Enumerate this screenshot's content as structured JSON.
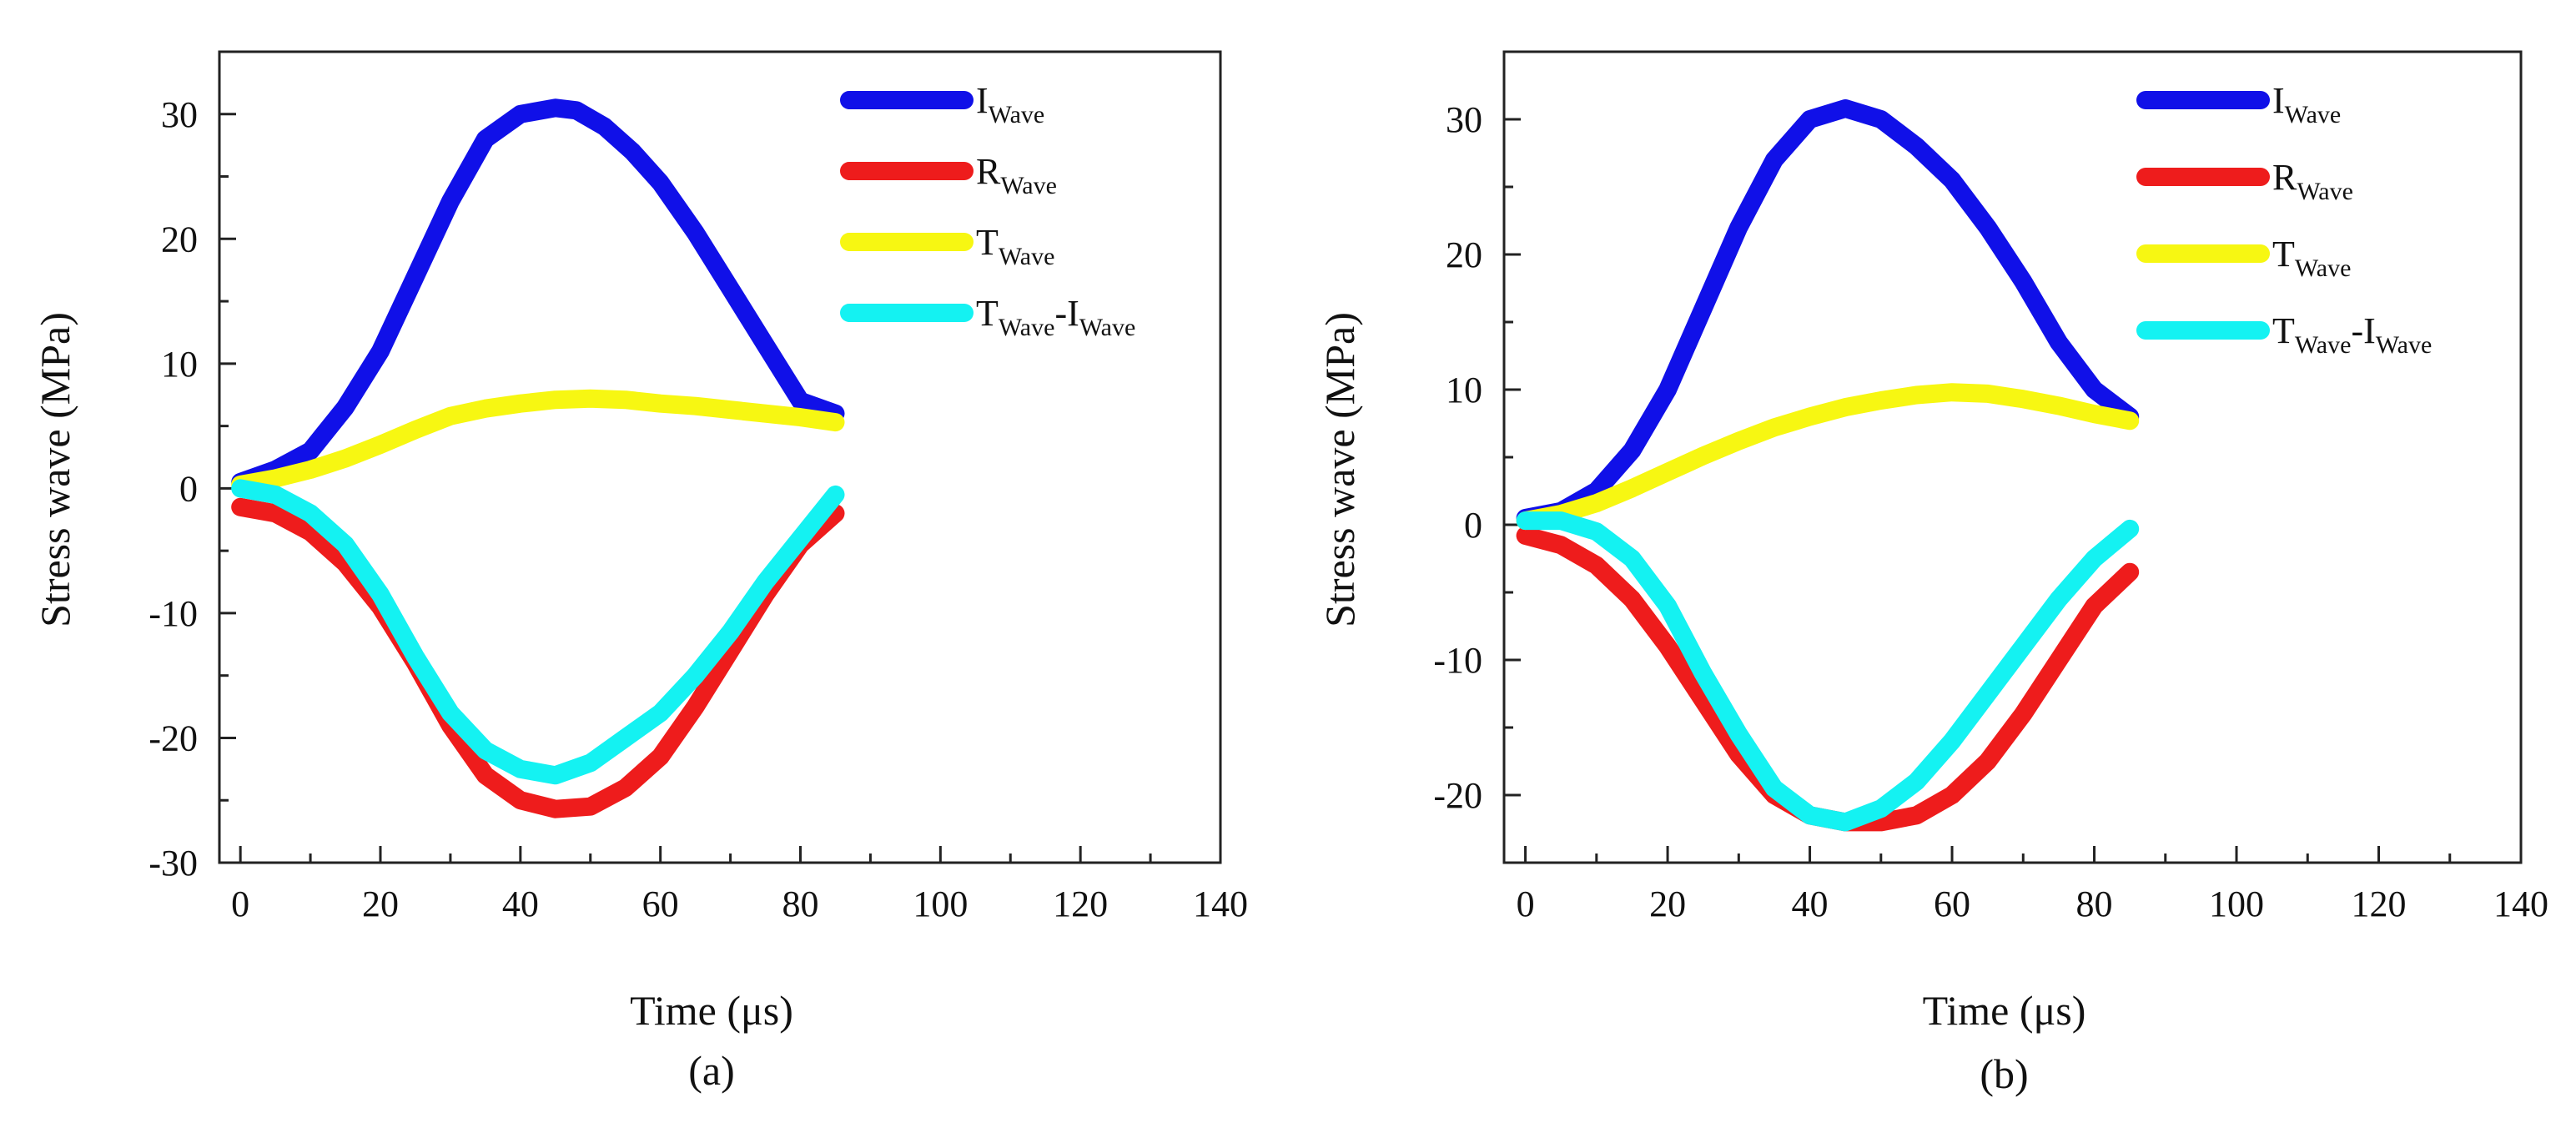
{
  "figure": {
    "caption_labels": [
      "(a)",
      "(b)"
    ]
  },
  "colors": {
    "I": "#1010e8",
    "R": "#ee1c1c",
    "T": "#f7f712",
    "TI": "#14f2f2"
  },
  "chart_data": [
    {
      "type": "line",
      "panel_label": "(a)",
      "xlabel": "Time (μs)",
      "ylabel": "Stress wave (MPa)",
      "xlim": [
        -3,
        140
      ],
      "ylim": [
        -30,
        35
      ],
      "xticks": [
        0,
        20,
        40,
        60,
        80,
        100,
        120,
        140
      ],
      "yticks": [
        -30,
        -20,
        -10,
        0,
        10,
        20,
        30
      ],
      "xtick_labels": [
        "0",
        "20",
        "40",
        "60",
        "80",
        "100",
        "120",
        "140"
      ],
      "ytick_labels": [
        "-30",
        "-20",
        "-10",
        "0",
        "10",
        "20",
        "30"
      ],
      "grid": false,
      "legend_position": "top-right",
      "series": [
        {
          "key": "I",
          "name": "I",
          "name_sub": "Wave",
          "x": [
            0,
            5,
            10,
            15,
            20,
            25,
            30,
            35,
            40,
            45,
            48,
            52,
            56,
            60,
            65,
            70,
            75,
            80,
            85
          ],
          "values": [
            0.5,
            1.5,
            3,
            6.5,
            11,
            17,
            23,
            28,
            30,
            30.5,
            30.3,
            29,
            27,
            24.5,
            20.5,
            16,
            11.5,
            7,
            6
          ]
        },
        {
          "key": "R",
          "name": "R",
          "name_sub": "Wave",
          "x": [
            0,
            5,
            10,
            15,
            20,
            25,
            30,
            35,
            40,
            45,
            50,
            55,
            60,
            65,
            70,
            75,
            80,
            85
          ],
          "values": [
            -1.5,
            -2,
            -3.5,
            -6,
            -9.5,
            -14,
            -19,
            -23,
            -25,
            -25.7,
            -25.5,
            -24,
            -21.5,
            -17.5,
            -13,
            -8.5,
            -4.5,
            -2
          ]
        },
        {
          "key": "T",
          "name": "T",
          "name_sub": "Wave",
          "x": [
            0,
            5,
            10,
            15,
            20,
            25,
            30,
            35,
            40,
            45,
            50,
            55,
            60,
            65,
            70,
            75,
            80,
            85
          ],
          "values": [
            0.3,
            0.8,
            1.5,
            2.4,
            3.5,
            4.7,
            5.8,
            6.4,
            6.8,
            7.1,
            7.2,
            7.1,
            6.8,
            6.6,
            6.3,
            6.0,
            5.7,
            5.3
          ]
        },
        {
          "key": "TI",
          "name": "T",
          "name_sub": "Wave",
          "name2": "-I",
          "name2_sub": "Wave",
          "x": [
            0,
            5,
            10,
            15,
            20,
            25,
            30,
            35,
            40,
            45,
            50,
            55,
            60,
            65,
            70,
            75,
            80,
            85
          ],
          "values": [
            0,
            -0.5,
            -2,
            -4.5,
            -8.5,
            -13.5,
            -18,
            -21,
            -22.5,
            -23,
            -22,
            -20,
            -18,
            -15,
            -11.5,
            -7.5,
            -4,
            -0.5
          ]
        }
      ]
    },
    {
      "type": "line",
      "panel_label": "(b)",
      "xlabel": "Time (μs)",
      "ylabel": "Stress wave (MPa)",
      "xlim": [
        -3,
        140
      ],
      "ylim": [
        -25,
        35
      ],
      "xticks": [
        0,
        20,
        40,
        60,
        80,
        100,
        120,
        140
      ],
      "yticks": [
        -20,
        -10,
        0,
        10,
        20,
        30
      ],
      "xtick_labels": [
        "0",
        "20",
        "40",
        "60",
        "80",
        "100",
        "120",
        "140"
      ],
      "ytick_labels": [
        "-20",
        "-10",
        "0",
        "10",
        "20",
        "30"
      ],
      "grid": false,
      "legend_position": "top-right",
      "series": [
        {
          "key": "I",
          "name": "I",
          "name_sub": "Wave",
          "x": [
            0,
            5,
            10,
            15,
            20,
            25,
            30,
            35,
            40,
            45,
            50,
            55,
            60,
            65,
            70,
            75,
            80,
            85
          ],
          "values": [
            0.5,
            1,
            2.5,
            5.5,
            10,
            16,
            22,
            27,
            30,
            30.8,
            30,
            28,
            25.5,
            22,
            18,
            13.5,
            10,
            8
          ]
        },
        {
          "key": "R",
          "name": "R",
          "name_sub": "Wave",
          "x": [
            0,
            5,
            10,
            15,
            20,
            25,
            30,
            35,
            40,
            45,
            50,
            55,
            60,
            65,
            70,
            75,
            80,
            85
          ],
          "values": [
            -0.8,
            -1.5,
            -3,
            -5.5,
            -9,
            -13,
            -17,
            -20,
            -21.5,
            -22,
            -22,
            -21.5,
            -20,
            -17.5,
            -14,
            -10,
            -6,
            -3.5
          ]
        },
        {
          "key": "T",
          "name": "T",
          "name_sub": "Wave",
          "x": [
            0,
            5,
            10,
            15,
            20,
            25,
            30,
            35,
            40,
            45,
            50,
            55,
            60,
            65,
            70,
            75,
            80,
            85
          ],
          "values": [
            0.3,
            0.8,
            1.6,
            2.7,
            3.9,
            5.1,
            6.2,
            7.2,
            8.0,
            8.7,
            9.2,
            9.6,
            9.8,
            9.7,
            9.3,
            8.8,
            8.2,
            7.7
          ]
        },
        {
          "key": "TI",
          "name": "T",
          "name_sub": "Wave",
          "name2": "-I",
          "name2_sub": "Wave",
          "x": [
            0,
            5,
            10,
            15,
            20,
            25,
            30,
            35,
            40,
            45,
            50,
            55,
            60,
            65,
            70,
            75,
            80,
            85
          ],
          "values": [
            0.3,
            0.3,
            -0.5,
            -2.5,
            -6,
            -11,
            -15.5,
            -19.5,
            -21.5,
            -22,
            -21,
            -19,
            -16,
            -12.5,
            -9,
            -5.5,
            -2.5,
            -0.3
          ]
        }
      ]
    }
  ]
}
